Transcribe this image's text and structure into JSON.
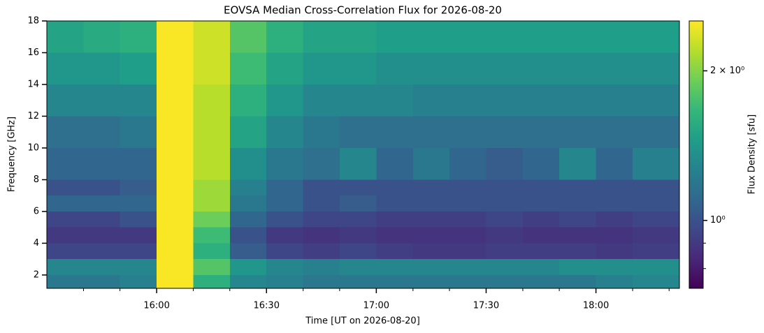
{
  "chart_data": {
    "type": "heatmap",
    "title": "EOVSA Median Cross-Correlation Flux for 2026-08-20",
    "x_label": "Time [UT on 2026-08-20]",
    "y_label": "Frequency [GHz]",
    "colorbar_label": "Flux Density [sfu]",
    "colormap": "viridis",
    "color_scale": "log",
    "xlim": [
      15.5,
      18.38
    ],
    "ylim": [
      1.16,
      18
    ],
    "clim": [
      0.73,
      2.52
    ],
    "xticks": [
      {
        "value": 16,
        "label": "16:00"
      },
      {
        "value": 16.5,
        "label": "16:30"
      },
      {
        "value": 17,
        "label": "17:00"
      },
      {
        "value": 17.5,
        "label": "17:30"
      },
      {
        "value": 18,
        "label": "18:00"
      }
    ],
    "xminorticks": [
      15.667,
      15.833,
      16.167,
      16.333,
      16.667,
      16.833,
      17.167,
      17.333,
      17.667,
      17.833,
      18.167,
      18.333
    ],
    "yticks": [
      2,
      4,
      6,
      8,
      10,
      12,
      14,
      16,
      18
    ],
    "cticks": [
      {
        "value": 2,
        "label": "2 × 10⁰"
      },
      {
        "value": 1,
        "label": "10⁰"
      }
    ],
    "cminorticks": [
      0.8,
      0.9
    ],
    "x_edges": [
      15.5,
      15.667,
      15.833,
      16,
      16.167,
      16.333,
      16.5,
      16.667,
      16.833,
      17,
      17.167,
      17.333,
      17.5,
      17.667,
      17.833,
      18,
      18.167,
      18.38
    ],
    "y_edges": [
      1.16,
      2,
      3,
      4,
      5,
      6,
      7,
      8,
      10,
      12,
      14,
      16,
      18
    ],
    "z": [
      [
        1.2,
        1.2,
        1.25,
        2.5,
        1.6,
        1.3,
        1.25,
        1.2,
        1.2,
        1.2,
        1.2,
        1.2,
        1.2,
        1.2,
        1.2,
        1.25,
        1.3
      ],
      [
        1.3,
        1.3,
        1.3,
        2.5,
        1.8,
        1.4,
        1.3,
        1.25,
        1.3,
        1.3,
        1.3,
        1.3,
        1.3,
        1.3,
        1.35,
        1.35,
        1.35
      ],
      [
        0.95,
        0.95,
        0.95,
        2.5,
        1.6,
        1.05,
        0.95,
        0.92,
        0.95,
        0.92,
        0.9,
        0.9,
        0.92,
        0.92,
        0.92,
        0.9,
        0.92
      ],
      [
        0.9,
        0.9,
        0.9,
        2.5,
        1.7,
        1.0,
        0.9,
        0.88,
        0.9,
        0.88,
        0.88,
        0.88,
        0.9,
        0.88,
        0.88,
        0.88,
        0.9
      ],
      [
        0.95,
        0.95,
        1.0,
        2.5,
        1.9,
        1.1,
        1.0,
        0.95,
        0.95,
        0.92,
        0.92,
        0.92,
        0.95,
        0.92,
        0.95,
        0.92,
        0.95
      ],
      [
        1.1,
        1.1,
        1.1,
        2.5,
        2.1,
        1.2,
        1.1,
        1.0,
        1.05,
        1.0,
        1.0,
        1.0,
        1.0,
        1.0,
        1.0,
        1.0,
        1.0
      ],
      [
        1.0,
        1.0,
        1.05,
        2.5,
        2.1,
        1.25,
        1.1,
        1.0,
        1.0,
        1.0,
        1.0,
        1.0,
        1.0,
        1.0,
        1.0,
        1.0,
        1.0
      ],
      [
        1.1,
        1.1,
        1.1,
        2.5,
        2.2,
        1.35,
        1.2,
        1.15,
        1.3,
        1.1,
        1.2,
        1.1,
        1.05,
        1.1,
        1.3,
        1.1,
        1.25
      ],
      [
        1.15,
        1.15,
        1.2,
        2.5,
        2.2,
        1.5,
        1.3,
        1.2,
        1.15,
        1.15,
        1.15,
        1.15,
        1.15,
        1.15,
        1.15,
        1.15,
        1.15
      ],
      [
        1.3,
        1.3,
        1.3,
        2.5,
        2.2,
        1.6,
        1.4,
        1.3,
        1.3,
        1.3,
        1.25,
        1.25,
        1.25,
        1.25,
        1.25,
        1.25,
        1.25
      ],
      [
        1.4,
        1.4,
        1.45,
        2.5,
        2.3,
        1.7,
        1.5,
        1.4,
        1.4,
        1.35,
        1.35,
        1.35,
        1.35,
        1.35,
        1.35,
        1.35,
        1.35
      ],
      [
        1.5,
        1.55,
        1.6,
        2.5,
        2.3,
        1.8,
        1.6,
        1.5,
        1.5,
        1.45,
        1.45,
        1.45,
        1.45,
        1.45,
        1.45,
        1.45,
        1.45
      ]
    ]
  }
}
